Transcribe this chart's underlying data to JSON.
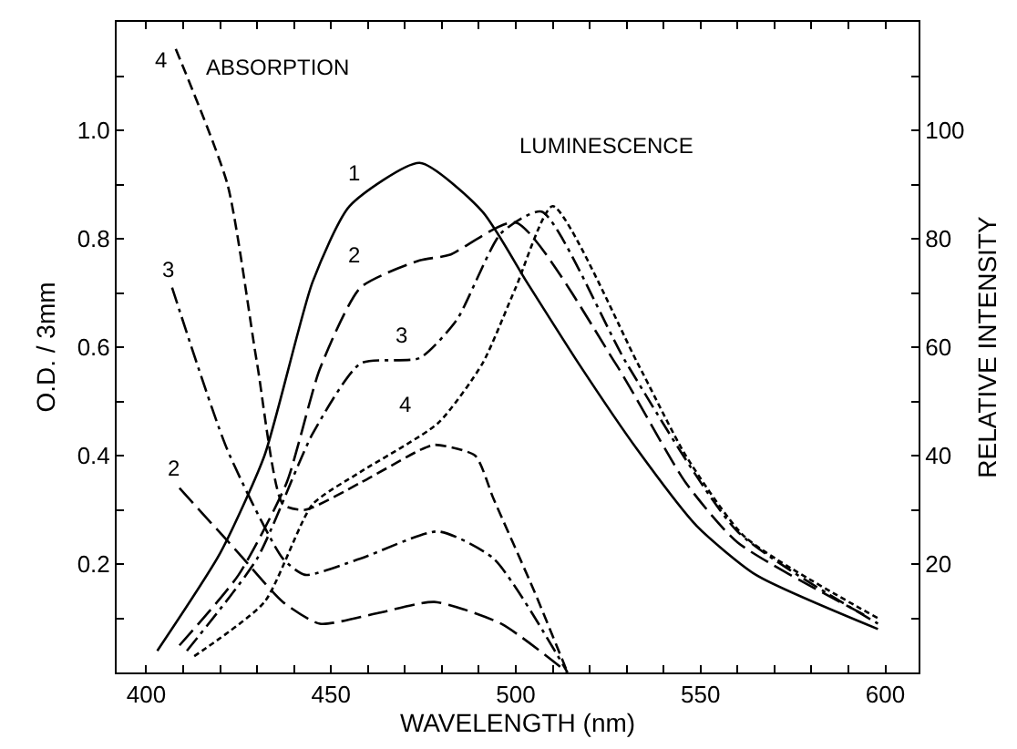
{
  "chart_data": {
    "type": "line",
    "xlabel": "WAVELENGTH (nm)",
    "ylabel": "O.D. / 3mm",
    "y2label": "RELATIVE INTENSITY",
    "xlim": [
      392,
      609
    ],
    "ylim": [
      0,
      1.2
    ],
    "y2lim": [
      0,
      120
    ],
    "xticks": [
      400,
      {
        "value": 410,
        "label": null
      },
      {
        "value": 420,
        "label": null
      },
      {
        "value": 430,
        "label": null
      },
      {
        "value": 440,
        "label": null
      },
      450,
      {
        "value": 460,
        "label": null
      },
      {
        "value": 470,
        "label": null
      },
      {
        "value": 480,
        "label": null
      },
      {
        "value": 490,
        "label": null
      },
      500,
      {
        "value": 510,
        "label": null
      },
      {
        "value": 520,
        "label": null
      },
      {
        "value": 530,
        "label": null
      },
      {
        "value": 540,
        "label": null
      },
      550,
      {
        "value": 560,
        "label": null
      },
      {
        "value": 570,
        "label": null
      },
      {
        "value": 580,
        "label": null
      },
      {
        "value": 590,
        "label": null
      },
      600
    ],
    "yticks": [
      {
        "value": 0.1,
        "label": null
      },
      0.2,
      {
        "value": 0.3,
        "label": null
      },
      0.4,
      {
        "value": 0.5,
        "label": null
      },
      0.6,
      {
        "value": 0.7,
        "label": null
      },
      0.8,
      {
        "value": 0.9,
        "label": null
      },
      {
        "value": 1.0,
        "label": "1.0"
      },
      {
        "value": 1.1,
        "label": null
      }
    ],
    "y2ticks": [
      {
        "value": 10,
        "label": null
      },
      20,
      {
        "value": 30,
        "label": null
      },
      40,
      {
        "value": 50,
        "label": null
      },
      60,
      {
        "value": 70,
        "label": null
      },
      80,
      {
        "value": 90,
        "label": null
      },
      100,
      {
        "value": 110,
        "label": null
      }
    ],
    "marker": "none",
    "series": [
      {
        "color": "#000000",
        "line_style": "dashed",
        "axis": "y",
        "x": [
          408,
          422,
          430,
          437,
          443,
          458,
          474,
          478,
          489,
          494,
          505,
          514
        ],
        "values": [
          1.15,
          0.9,
          0.57,
          0.31,
          0.3,
          0.35,
          0.41,
          0.42,
          0.4,
          0.32,
          0.15,
          0
        ]
      },
      {
        "color": "#000000",
        "line_style": "dashdot",
        "axis": "y",
        "x": [
          407,
          422,
          437,
          443,
          458,
          479,
          494,
          514
        ],
        "values": [
          0.71,
          0.41,
          0.21,
          0.18,
          0.21,
          0.26,
          0.21,
          0
        ]
      },
      {
        "color": "#000000",
        "line_style": "longdash",
        "axis": "y",
        "x": [
          409,
          425,
          437,
          447,
          463,
          478,
          496,
          514
        ],
        "values": [
          0.34,
          0.22,
          0.13,
          0.09,
          0.11,
          0.13,
          0.09,
          0
        ]
      },
      {
        "color": "#000000",
        "line_style": "solid",
        "axis": "y2",
        "x": [
          403,
          420,
          432,
          445,
          455,
          474,
          491,
          503,
          517,
          533,
          549,
          565,
          598
        ],
        "values": [
          4,
          22,
          40,
          72,
          86,
          94,
          85,
          72,
          57,
          41,
          27,
          18,
          8
        ]
      },
      {
        "color": "#000000",
        "line_style": "longdash",
        "axis": "y2",
        "x": [
          409,
          425,
          438,
          447,
          458,
          474,
          482,
          500,
          527,
          546,
          560,
          596
        ],
        "values": [
          5,
          18,
          35,
          56,
          71,
          76,
          77,
          83,
          57,
          35,
          24,
          10
        ]
      },
      {
        "color": "#000000",
        "line_style": "dashdot",
        "axis": "y2",
        "x": [
          411,
          430,
          445,
          458,
          474,
          484,
          496,
          507,
          530,
          560,
          598
        ],
        "values": [
          4,
          21,
          44,
          57,
          58,
          65,
          81,
          85,
          57,
          26,
          9
        ]
      },
      {
        "color": "#000000",
        "line_style": "dotted",
        "axis": "y2",
        "x": [
          413,
          432,
          445,
          458,
          479,
          491,
          500,
          510,
          533,
          546,
          562,
          598
        ],
        "values": [
          3,
          13,
          31,
          37,
          46,
          57,
          71,
          86,
          57,
          40,
          25,
          10
        ]
      }
    ],
    "annotations": [
      "ABSORPTION",
      "LUMINESCENCE",
      "4",
      "3",
      "2",
      "1",
      "2",
      "3",
      "4"
    ]
  }
}
